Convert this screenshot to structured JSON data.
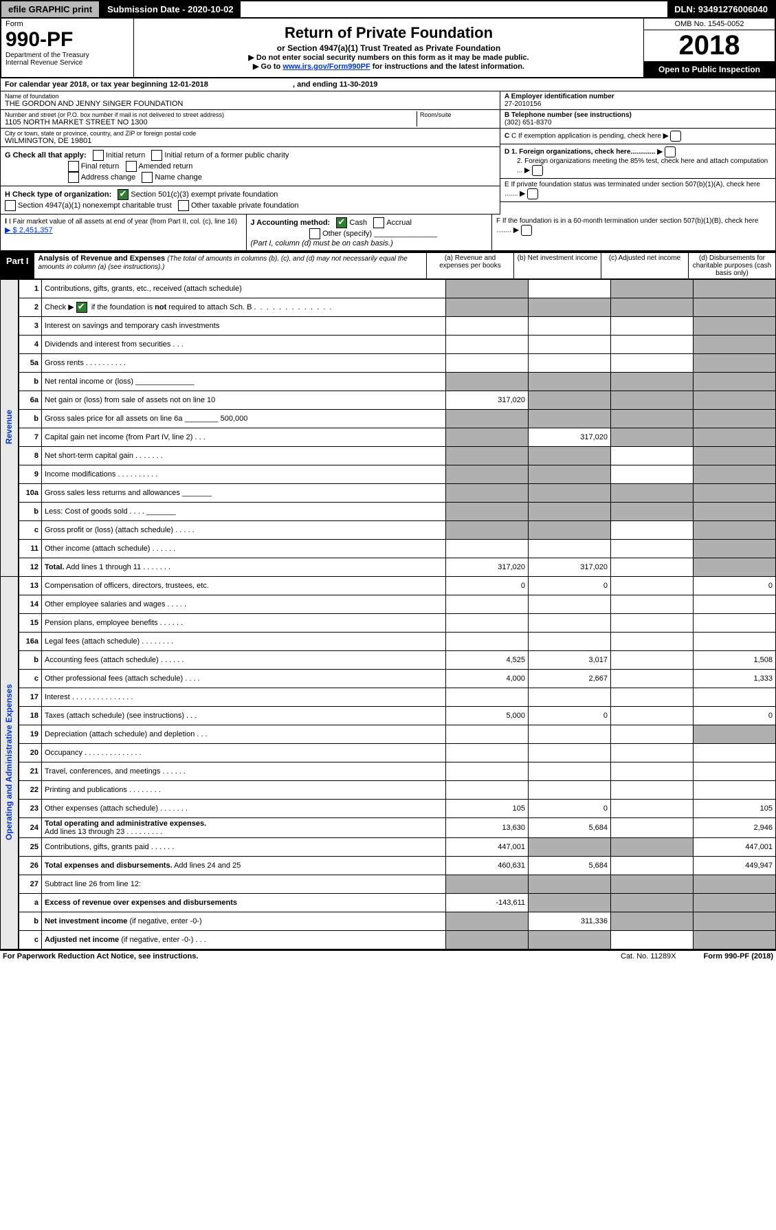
{
  "top_bar": {
    "efile": "efile GRAPHIC print",
    "sub_date_label": "Submission Date - 2020-10-02",
    "dln": "DLN: 93491276006040"
  },
  "header": {
    "form_label": "Form",
    "form_number": "990-PF",
    "dept": "Department of the Treasury",
    "irs": "Internal Revenue Service",
    "title": "Return of Private Foundation",
    "subtitle": "or Section 4947(a)(1) Trust Treated as Private Foundation",
    "note1": "▶ Do not enter social security numbers on this form as it may be made public.",
    "note2_pre": "▶ Go to ",
    "note2_link": "www.irs.gov/Form990PF",
    "note2_post": " for instructions and the latest information.",
    "omb": "OMB No. 1545-0052",
    "year": "2018",
    "open": "Open to Public Inspection"
  },
  "entity": {
    "cal_year": "For calendar year 2018, or tax year beginning 12-01-2018",
    "cal_year_end": ", and ending 11-30-2019",
    "name_lab": "Name of foundation",
    "name": "THE GORDON AND JENNY SINGER FOUNDATION",
    "addr_lab": "Number and street (or P.O. box number if mail is not delivered to street address)",
    "addr": "1105 NORTH MARKET STREET NO 1300",
    "room_lab": "Room/suite",
    "city_lab": "City or town, state or province, country, and ZIP or foreign postal code",
    "city": "WILMINGTON, DE  19801",
    "ein_lab": "A Employer identification number",
    "ein": "27-2010156",
    "phone_lab": "B Telephone number (see instructions)",
    "phone": "(302) 651-8370",
    "c_lab": "C If exemption application is pending, check here",
    "d1": "D 1. Foreign organizations, check here.............",
    "d2": "2. Foreign organizations meeting the 85% test, check here and attach computation ...",
    "e": "E  If private foundation status was terminated under section 507(b)(1)(A), check here .......",
    "f": "F  If the foundation is in a 60-month termination under section 507(b)(1)(B), check here ........"
  },
  "checks": {
    "g_lab": "G Check all that apply:",
    "g_items": [
      "Initial return",
      "Initial return of a former public charity",
      "Final return",
      "Amended return",
      "Address change",
      "Name change"
    ],
    "h_lab": "H Check type of organization:",
    "h1": "Section 501(c)(3) exempt private foundation",
    "h2": "Section 4947(a)(1) nonexempt charitable trust",
    "h3": "Other taxable private foundation",
    "i_lab": "I Fair market value of all assets at end of year (from Part II, col. (c), line 16)",
    "i_val": "▶ $  2,451,357",
    "j_lab": "J Accounting method:",
    "j_cash": "Cash",
    "j_accr": "Accrual",
    "j_other": "Other (specify)",
    "j_note": "(Part I, column (d) must be on cash basis.)"
  },
  "part1": {
    "label": "Part I",
    "title": "Analysis of Revenue and Expenses",
    "note": "(The total of amounts in columns (b), (c), and (d) may not necessarily equal the amounts in column (a) (see instructions).)",
    "col_a": "(a)    Revenue and expenses per books",
    "col_b": "(b)   Net investment income",
    "col_c": "(c)   Adjusted net income",
    "col_d": "(d)   Disbursements for charitable purposes (cash basis only)"
  },
  "side_labels": {
    "rev": "Revenue",
    "exp": "Operating and Administrative Expenses"
  },
  "rows": [
    {
      "n": "1",
      "t": "Contributions, gifts, grants, etc., received (attach schedule)",
      "a": "",
      "b": "",
      "c": "",
      "d": "",
      "da": true,
      "db": false,
      "dc": true,
      "dd": true
    },
    {
      "n": "2",
      "t": "Check ▶ [✔] if the foundation is <b>not</b> required to attach Sch. B",
      "a": "",
      "b": "",
      "c": "",
      "d": "",
      "da": true,
      "db": true,
      "dc": true,
      "dd": true,
      "check": true
    },
    {
      "n": "3",
      "t": "Interest on savings and temporary cash investments",
      "a": "",
      "b": "",
      "c": "",
      "d": "",
      "dd": true
    },
    {
      "n": "4",
      "t": "Dividends and interest from securities   .   .   .",
      "a": "",
      "b": "",
      "c": "",
      "d": "",
      "dd": true
    },
    {
      "n": "5a",
      "t": "Gross rents        .    .    .    .    .    .    .    .    .    .",
      "a": "",
      "b": "",
      "c": "",
      "d": "",
      "dd": true
    },
    {
      "n": "b",
      "t": "Net rental income or (loss)         ______________",
      "a": "",
      "b": "",
      "c": "",
      "d": "",
      "da": true,
      "db": true,
      "dc": true,
      "dd": true
    },
    {
      "n": "6a",
      "t": "Net gain or (loss) from sale of assets not on line 10",
      "a": "317,020",
      "b": "",
      "c": "",
      "d": "",
      "db": true,
      "dc": true,
      "dd": true
    },
    {
      "n": "b",
      "t": "Gross sales price for all assets on line 6a ________ 500,000",
      "a": "",
      "b": "",
      "c": "",
      "d": "",
      "da": true,
      "db": true,
      "dc": true,
      "dd": true
    },
    {
      "n": "7",
      "t": "Capital gain net income (from Part IV, line 2)    .   .   .",
      "a": "",
      "b": "317,020",
      "c": "",
      "d": "",
      "da": true,
      "dc": true,
      "dd": true
    },
    {
      "n": "8",
      "t": "Net short-term capital gain    .    .    .    .    .    .    .",
      "a": "",
      "b": "",
      "c": "",
      "d": "",
      "da": true,
      "db": true,
      "dd": true
    },
    {
      "n": "9",
      "t": "Income modifications  .    .    .    .    .    .    .    .    .    .",
      "a": "",
      "b": "",
      "c": "",
      "d": "",
      "da": true,
      "db": true,
      "dd": true
    },
    {
      "n": "10a",
      "t": "Gross sales less returns and allowances  _______",
      "a": "",
      "b": "",
      "c": "",
      "d": "",
      "da": true,
      "db": true,
      "dc": true,
      "dd": true
    },
    {
      "n": "b",
      "t": "Less: Cost of goods sold       .    .    .    .   _______",
      "a": "",
      "b": "",
      "c": "",
      "d": "",
      "da": true,
      "db": true,
      "dc": true,
      "dd": true
    },
    {
      "n": "c",
      "t": "Gross profit or (loss) (attach schedule)     .    .    .    .    .",
      "a": "",
      "b": "",
      "c": "",
      "d": "",
      "da": true,
      "db": true,
      "dd": true
    },
    {
      "n": "11",
      "t": "Other income (attach schedule)     .    .    .    .    .    .",
      "a": "",
      "b": "",
      "c": "",
      "d": "",
      "dd": true
    },
    {
      "n": "12",
      "t": "<b>Total.</b> Add lines 1 through 11     .    .    .    .    .    .    .",
      "a": "317,020",
      "b": "317,020",
      "c": "",
      "d": "",
      "dd": true
    },
    {
      "n": "13",
      "t": "Compensation of officers, directors, trustees, etc.",
      "a": "0",
      "b": "0",
      "c": "",
      "d": "0"
    },
    {
      "n": "14",
      "t": "Other employee salaries and wages     .    .    .    .    .",
      "a": "",
      "b": "",
      "c": "",
      "d": ""
    },
    {
      "n": "15",
      "t": "Pension plans, employee benefits   .    .    .    .    .    .",
      "a": "",
      "b": "",
      "c": "",
      "d": ""
    },
    {
      "n": "16a",
      "t": "Legal fees (attach schedule)  .    .    .    .    .    .    .    .",
      "a": "",
      "b": "",
      "c": "",
      "d": ""
    },
    {
      "n": "b",
      "t": "Accounting fees (attach schedule)   .    .    .    .    .    .",
      "a": "4,525",
      "b": "3,017",
      "c": "",
      "d": "1,508"
    },
    {
      "n": "c",
      "t": "Other professional fees (attach schedule)     .    .    .    .",
      "a": "4,000",
      "b": "2,667",
      "c": "",
      "d": "1,333"
    },
    {
      "n": "17",
      "t": "Interest   .   .   .   .   .   .   .   .   .   .   .   .   .   .   .",
      "a": "",
      "b": "",
      "c": "",
      "d": ""
    },
    {
      "n": "18",
      "t": "Taxes (attach schedule) (see instructions)      .    .    .",
      "a": "5,000",
      "b": "0",
      "c": "",
      "d": "0"
    },
    {
      "n": "19",
      "t": "Depreciation (attach schedule) and depletion     .    .    .",
      "a": "",
      "b": "",
      "c": "",
      "d": "",
      "dd": true
    },
    {
      "n": "20",
      "t": "Occupancy  .   .   .   .   .   .   .   .   .   .   .   .   .   .",
      "a": "",
      "b": "",
      "c": "",
      "d": ""
    },
    {
      "n": "21",
      "t": "Travel, conferences, and meetings   .    .    .    .    .    .",
      "a": "",
      "b": "",
      "c": "",
      "d": ""
    },
    {
      "n": "22",
      "t": "Printing and publications  .    .    .    .    .    .    .    .",
      "a": "",
      "b": "",
      "c": "",
      "d": ""
    },
    {
      "n": "23",
      "t": "Other expenses (attach schedule)   .    .    .    .    .    .    .",
      "a": "105",
      "b": "0",
      "c": "",
      "d": "105"
    },
    {
      "n": "24",
      "t": "<b>Total operating and administrative expenses.</b><br>Add lines 13 through 23   .    .    .    .    .    .    .    .    .",
      "a": "13,630",
      "b": "5,684",
      "c": "",
      "d": "2,946"
    },
    {
      "n": "25",
      "t": "Contributions, gifts, grants paid       .    .    .    .    .    .",
      "a": "447,001",
      "b": "",
      "c": "",
      "d": "447,001",
      "db": true,
      "dc": true
    },
    {
      "n": "26",
      "t": "<b>Total expenses and disbursements.</b> Add lines 24 and 25",
      "a": "460,631",
      "b": "5,684",
      "c": "",
      "d": "449,947"
    },
    {
      "n": "27",
      "t": "Subtract line 26 from line 12:",
      "a": "",
      "b": "",
      "c": "",
      "d": "",
      "da": true,
      "db": true,
      "dc": true,
      "dd": true
    },
    {
      "n": "a",
      "t": "<b>Excess of revenue over expenses and disbursements</b>",
      "a": "-143,611",
      "b": "",
      "c": "",
      "d": "",
      "db": true,
      "dc": true,
      "dd": true
    },
    {
      "n": "b",
      "t": "<b>Net investment income</b> (if negative, enter -0-)",
      "a": "",
      "b": "311,336",
      "c": "",
      "d": "",
      "da": true,
      "dc": true,
      "dd": true
    },
    {
      "n": "c",
      "t": "<b>Adjusted net income</b> (if negative, enter -0-)    .   .   .",
      "a": "",
      "b": "",
      "c": "",
      "d": "",
      "da": true,
      "db": true,
      "dd": true
    }
  ],
  "footer": {
    "left": "For Paperwork Reduction Act Notice, see instructions.",
    "cat": "Cat. No. 11289X",
    "right": "Form 990-PF (2018)"
  }
}
